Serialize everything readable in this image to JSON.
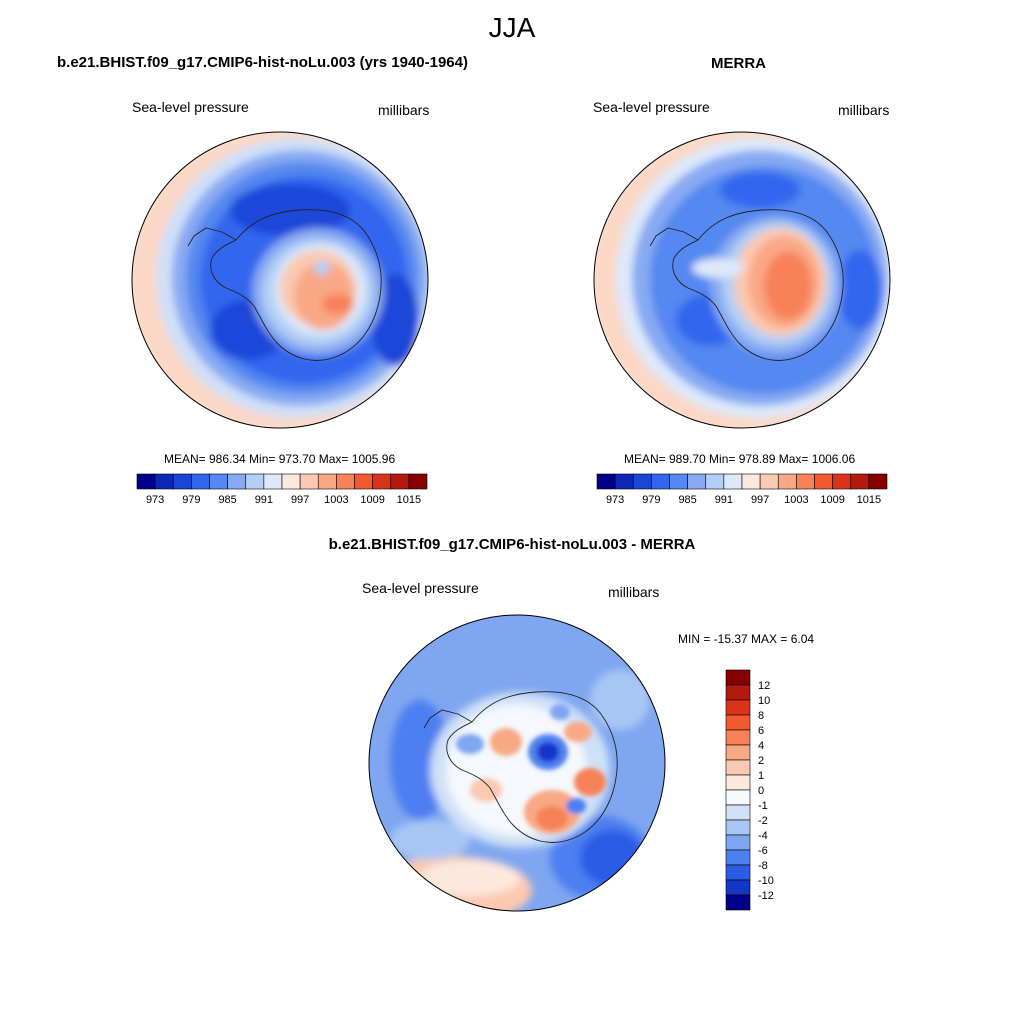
{
  "figure": {
    "title": "JJA",
    "panels": [
      {
        "title": "b.e21.BHIST.f09_g17.CMIP6-hist-noLu.003 (yrs 1940-1964)",
        "left_label": "Sea-level pressure",
        "right_label": "millibars",
        "stats": "MEAN= 986.34  Min= 973.70  Max= 1005.96",
        "colorbar": {
          "tick_labels": [
            "973",
            "979",
            "985",
            "991",
            "997",
            "1003",
            "1009",
            "1015"
          ],
          "colors": [
            "#00008b",
            "#0d28b8",
            "#1a46d8",
            "#3366ee",
            "#5588f0",
            "#88aaf2",
            "#b3cff5",
            "#dde9fa",
            "#fde8dc",
            "#fbc9b1",
            "#f9a885",
            "#f78258",
            "#f2592e",
            "#d9341a",
            "#b31a0d",
            "#870000"
          ]
        }
      },
      {
        "title": "MERRA",
        "left_label": "Sea-level pressure",
        "right_label": "millibars",
        "stats": "MEAN= 989.70  Min= 978.89  Max= 1006.06",
        "colorbar": {
          "tick_labels": [
            "973",
            "979",
            "985",
            "991",
            "997",
            "1003",
            "1009",
            "1015"
          ],
          "colors": [
            "#00008b",
            "#0d28b8",
            "#1a46d8",
            "#3366ee",
            "#5588f0",
            "#88aaf2",
            "#b3cff5",
            "#dde9fa",
            "#fde8dc",
            "#fbc9b1",
            "#f9a885",
            "#f78258",
            "#f2592e",
            "#d9341a",
            "#b31a0d",
            "#870000"
          ]
        }
      },
      {
        "title": "b.e21.BHIST.f09_g17.CMIP6-hist-noLu.003 - MERRA",
        "left_label": "Sea-level pressure",
        "right_label": "millibars",
        "stats": "MIN = -15.37 MAX =   6.04",
        "colorbar": {
          "tick_labels": [
            "12",
            "10",
            "8",
            "6",
            "4",
            "2",
            "1",
            "0",
            "-1",
            "-2",
            "-4",
            "-6",
            "-8",
            "-10",
            "-12"
          ],
          "colors": [
            "#870000",
            "#b31a0d",
            "#d9341a",
            "#f2592e",
            "#f78258",
            "#f9a885",
            "#fbc9b1",
            "#fde8dc",
            "#f5f8fc",
            "#cfe0f7",
            "#a8c6f4",
            "#7fa6f0",
            "#4d7ff0",
            "#2a5ce6",
            "#1236c8",
            "#00008b"
          ]
        }
      }
    ]
  }
}
